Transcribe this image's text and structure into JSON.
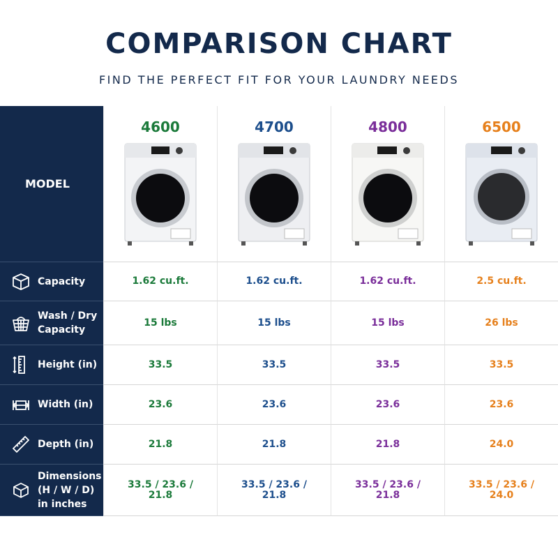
{
  "header": {
    "title": "COMPARISON CHART",
    "subtitle": "FIND THE PERFECT FIT FOR YOUR LAUNDRY NEEDS"
  },
  "colors": {
    "navy": "#13294b",
    "green": "#1b7a3a",
    "blue": "#1c4e8c",
    "purple": "#7a2e9a",
    "orange": "#e6801c"
  },
  "model_label": "MODEL",
  "models": [
    {
      "name": "4600",
      "color": "#1b7a3a"
    },
    {
      "name": "4700",
      "color": "#1c4e8c"
    },
    {
      "name": "4800",
      "color": "#7a2e9a"
    },
    {
      "name": "6500",
      "color": "#e6801c"
    }
  ],
  "rows": [
    {
      "label": "Capacity",
      "icon": "box-icon",
      "values": [
        "1.62 cu.ft.",
        "1.62 cu.ft.",
        "1.62 cu.ft.",
        "2.5 cu.ft."
      ]
    },
    {
      "label": "Wash / Dry Capacity",
      "icon": "laundry-basket-icon",
      "values": [
        "15 lbs",
        "15 lbs",
        "15 lbs",
        "26 lbs"
      ]
    },
    {
      "label": "Height (in)",
      "icon": "vertical-ruler-icon",
      "values": [
        "33.5",
        "33.5",
        "33.5",
        "33.5"
      ]
    },
    {
      "label": "Width (in)",
      "icon": "width-measure-icon",
      "values": [
        "23.6",
        "23.6",
        "23.6",
        "23.6"
      ]
    },
    {
      "label": "Depth (in)",
      "icon": "diagonal-ruler-icon",
      "values": [
        "21.8",
        "21.8",
        "21.8",
        "24.0"
      ]
    },
    {
      "label": "Dimensions (H / W / D) in inches",
      "icon": "dimensions-cube-icon",
      "values": [
        "33.5 / 23.6 / 21.8",
        "33.5 / 23.6 / 21.8",
        "33.5 / 23.6 / 21.8",
        "33.5 / 23.6 / 24.0"
      ]
    }
  ]
}
